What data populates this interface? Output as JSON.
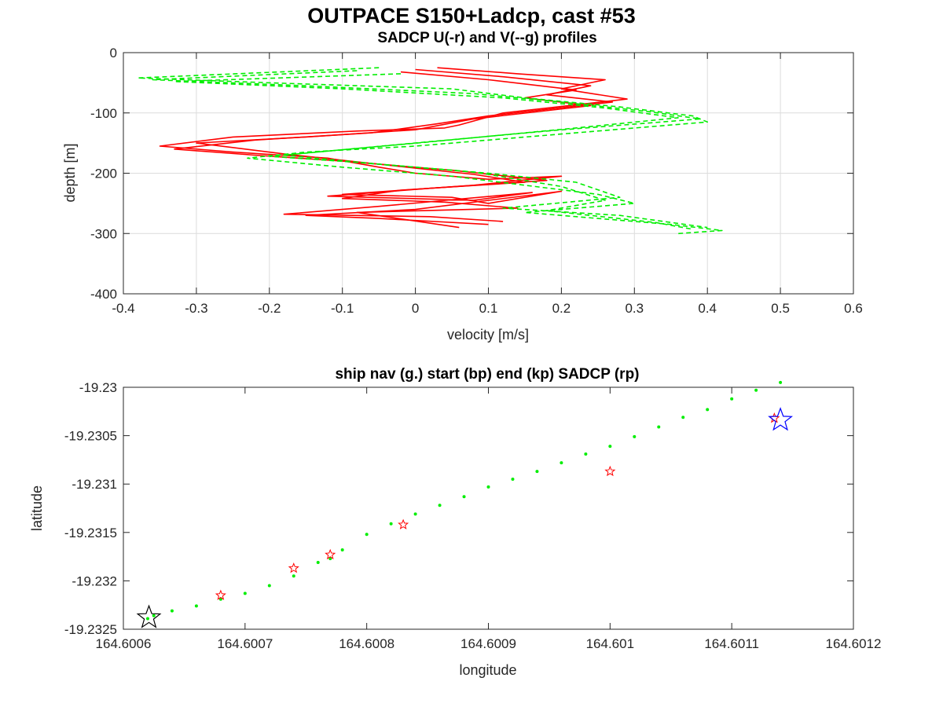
{
  "figure": {
    "title": "OUTPACE S150+Ladcp, cast #53"
  },
  "chart_data": [
    {
      "type": "line",
      "title": "SADCP U(-r) and V(--g) profiles",
      "xlabel": "velocity [m/s]",
      "ylabel": "depth [m]",
      "xlim": [
        -0.4,
        0.6
      ],
      "ylim": [
        -400,
        0
      ],
      "xticks": [
        "-0.4",
        "-0.3",
        "-0.2",
        "-0.1",
        "0",
        "0.1",
        "0.2",
        "0.3",
        "0.4",
        "0.5",
        "0.6"
      ],
      "yticks": [
        "0",
        "-100",
        "-200",
        "-300",
        "-400"
      ],
      "grid": true,
      "colors": {
        "U": "#ff0000",
        "V": "#00ee00"
      },
      "series": [
        {
          "key": "U",
          "style": "solid",
          "x": [
            0.03,
            0.14,
            0.26,
            0.2,
            0.29,
            0.12,
            0.06,
            0.04,
            -0.08,
            -0.25,
            -0.35,
            -0.25,
            -0.12,
            -0.05,
            0.0,
            0.1,
            0.2,
            0.08,
            -0.1,
            0.05,
            0.1,
            0.2,
            0.0,
            -0.15,
            -0.05,
            0.1
          ],
          "y": [
            -25,
            -35,
            -45,
            -60,
            -77,
            -100,
            -120,
            -125,
            -130,
            -140,
            -155,
            -165,
            -175,
            -190,
            -200,
            -210,
            -205,
            -220,
            -235,
            -240,
            -250,
            -230,
            -260,
            -270,
            -275,
            -285
          ]
        },
        {
          "key": "U",
          "style": "solid",
          "x": [
            0.0,
            0.12,
            0.24,
            0.18,
            0.27,
            0.1,
            0.03,
            -0.06,
            -0.22,
            -0.33,
            -0.22,
            -0.1,
            0.05,
            0.18,
            0.02,
            -0.12,
            0.08,
            0.16,
            -0.05,
            -0.18,
            0.02,
            0.12
          ],
          "y": [
            -28,
            -40,
            -55,
            -70,
            -82,
            -105,
            -118,
            -133,
            -145,
            -160,
            -170,
            -180,
            -195,
            -212,
            -225,
            -238,
            -245,
            -232,
            -255,
            -268,
            -272,
            -280
          ]
        },
        {
          "key": "U",
          "style": "solid",
          "x": [
            -0.02,
            0.1,
            0.22,
            0.15,
            0.24,
            0.08,
            0.0,
            -0.15,
            -0.3,
            -0.18,
            -0.05,
            0.08,
            0.15,
            -0.02,
            -0.1,
            0.04,
            0.14,
            -0.08,
            0.06
          ],
          "y": [
            -32,
            -45,
            -62,
            -75,
            -88,
            -110,
            -128,
            -140,
            -150,
            -168,
            -185,
            -202,
            -215,
            -228,
            -242,
            -248,
            -258,
            -265,
            -290
          ]
        },
        {
          "key": "V",
          "style": "dashed",
          "x": [
            -0.05,
            -0.38,
            -0.2,
            0.05,
            0.15,
            0.28,
            0.38,
            0.4,
            0.2,
            0.0,
            -0.15,
            -0.23,
            -0.1,
            0.05,
            0.15,
            0.25,
            0.3,
            0.15,
            0.25,
            0.35,
            0.42,
            0.36
          ],
          "y": [
            -25,
            -42,
            -50,
            -60,
            -75,
            -90,
            -105,
            -115,
            -135,
            -155,
            -165,
            -175,
            -190,
            -205,
            -220,
            -235,
            -250,
            -265,
            -275,
            -285,
            -295,
            -300
          ]
        },
        {
          "key": "V",
          "style": "dashed",
          "x": [
            -0.08,
            -0.36,
            -0.15,
            0.08,
            0.2,
            0.32,
            0.39,
            0.18,
            -0.02,
            -0.18,
            -0.05,
            0.1,
            0.22,
            0.28,
            0.12,
            0.28,
            0.4
          ],
          "y": [
            -30,
            -45,
            -55,
            -68,
            -82,
            -98,
            -110,
            -130,
            -152,
            -170,
            -185,
            -200,
            -215,
            -240,
            -258,
            -270,
            -290
          ]
        },
        {
          "key": "V",
          "style": "dashed",
          "x": [
            -0.02,
            -0.33,
            -0.1,
            0.12,
            0.26,
            0.36,
            0.22,
            0.02,
            -0.2,
            -0.08,
            0.08,
            0.2,
            0.26,
            0.18,
            0.33,
            0.38
          ],
          "y": [
            -35,
            -48,
            -60,
            -75,
            -92,
            -108,
            -125,
            -148,
            -172,
            -182,
            -198,
            -222,
            -245,
            -262,
            -282,
            -293
          ]
        }
      ]
    },
    {
      "type": "scatter",
      "title": "ship nav (g.) start (bp) end (kp) SADCP (rp)",
      "xlabel": "longitude",
      "ylabel": "latitude",
      "xlim": [
        164.6006,
        164.6012
      ],
      "ylim": [
        -19.2325,
        -19.23
      ],
      "xticks": [
        "164.6006",
        "164.6007",
        "164.6008",
        "164.6009",
        "164.601",
        "164.6011",
        "164.6012"
      ],
      "yticks": [
        "-19.23",
        "-19.2305",
        "-19.231",
        "-19.2315",
        "-19.232",
        "-19.2325"
      ],
      "grid": false,
      "colors": {
        "nav": "#00ee00",
        "start": "#0000ff",
        "end": "#000000",
        "sadcp": "#ff0000"
      },
      "series": [
        {
          "key": "nav",
          "marker": "dot",
          "x": [
            164.60062,
            164.600625,
            164.60064,
            164.60066,
            164.60068,
            164.6007,
            164.60072,
            164.60074,
            164.60076,
            164.60077,
            164.60078,
            164.6008,
            164.60082,
            164.60084,
            164.60086,
            164.60088,
            164.6009,
            164.60092,
            164.60094,
            164.60096,
            164.60098,
            164.601,
            164.60102,
            164.60104,
            164.60106,
            164.60108,
            164.6011,
            164.60112,
            164.60114
          ],
          "y": [
            -19.23239,
            -19.23236,
            -19.23231,
            -19.23226,
            -19.23219,
            -19.23213,
            -19.23205,
            -19.23195,
            -19.23181,
            -19.23177,
            -19.23168,
            -19.23152,
            -19.23141,
            -19.23131,
            -19.23122,
            -19.23113,
            -19.23103,
            -19.23095,
            -19.23087,
            -19.23078,
            -19.23069,
            -19.23061,
            -19.23051,
            -19.23041,
            -19.23031,
            -19.23023,
            -19.23012,
            -19.23003,
            -19.22995
          ]
        },
        {
          "key": "sadcp",
          "marker": "star-small",
          "x": [
            164.60068,
            164.60074,
            164.60077,
            164.60083,
            164.601,
            164.601135
          ],
          "y": [
            -19.23215,
            -19.23187,
            -19.23173,
            -19.23142,
            -19.23087,
            -19.23032
          ]
        },
        {
          "key": "start",
          "marker": "star-large",
          "x": [
            164.60114
          ],
          "y": [
            -19.23034
          ]
        },
        {
          "key": "end",
          "marker": "star-large",
          "x": [
            164.600621
          ],
          "y": [
            -19.23238
          ]
        }
      ]
    }
  ]
}
